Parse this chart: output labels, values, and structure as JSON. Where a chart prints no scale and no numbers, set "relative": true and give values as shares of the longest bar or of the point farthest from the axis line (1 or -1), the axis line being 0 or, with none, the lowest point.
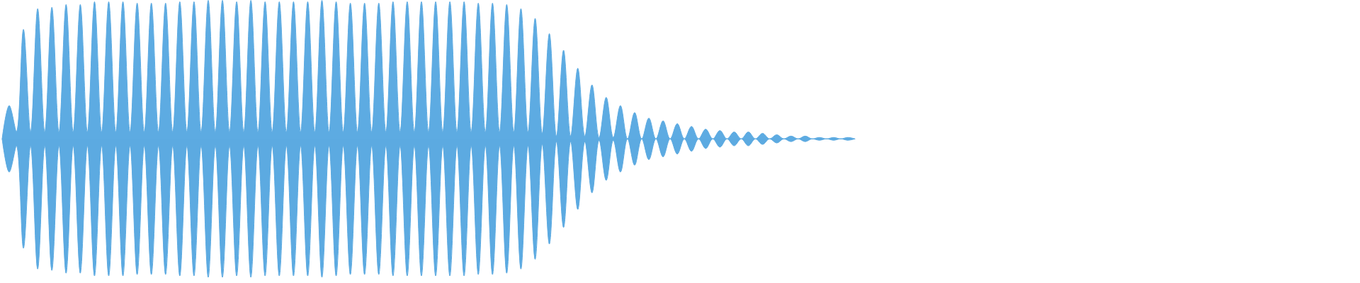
{
  "chart_data": {
    "type": "area",
    "relative": true,
    "categories": [
      null,
      null,
      null,
      null,
      null,
      null,
      null,
      null,
      null,
      null,
      null,
      null,
      null,
      null,
      null,
      null,
      null,
      null,
      null,
      null,
      null,
      null,
      null,
      null,
      null,
      null,
      null,
      null,
      null,
      null,
      null,
      null,
      null,
      null,
      null,
      null,
      null,
      null,
      null,
      null,
      null,
      null,
      null,
      null,
      null,
      null,
      null,
      null,
      null,
      null,
      null,
      null,
      null,
      null,
      null,
      null,
      null,
      null,
      null,
      null,
      null,
      null,
      null,
      null,
      null,
      null,
      null,
      null,
      null,
      null,
      null,
      null,
      null,
      null,
      null,
      null,
      null,
      null,
      null,
      null,
      null,
      null,
      null,
      null,
      null,
      null,
      null,
      null,
      null,
      null,
      null,
      null,
      null,
      null,
      null,
      null,
      null,
      null,
      null,
      null,
      null,
      null,
      null,
      null,
      null,
      null,
      null,
      null,
      null,
      null,
      null,
      null,
      null,
      null,
      null,
      null,
      null,
      null,
      null,
      null,
      null
    ],
    "series": [
      {
        "color": "#5dabe2",
        "values": [
          0,
          0.24,
          0.05,
          0.79,
          0.05,
          0.94,
          0.05,
          0.95,
          0.05,
          0.97,
          0.05,
          0.97,
          0.05,
          0.99,
          0.05,
          0.99,
          0.05,
          0.99,
          0.05,
          0.98,
          0.05,
          0.98,
          0.05,
          0.98,
          0.05,
          0.99,
          0.05,
          0.99,
          0.05,
          1,
          0.05,
          1,
          0.05,
          0.99,
          0.05,
          1,
          0.05,
          0.99,
          0.05,
          0.99,
          0.05,
          0.99,
          0.05,
          0.99,
          0.05,
          1,
          0.05,
          0.99,
          0.05,
          0.98,
          0.05,
          0.98,
          0.05,
          0.98,
          0.05,
          0.99,
          0.05,
          0.99,
          0.05,
          0.99,
          0.05,
          0.99,
          0.05,
          0.99,
          0.05,
          0.99,
          0.05,
          0.98,
          0.05,
          0.98,
          0.05,
          0.97,
          0.05,
          0.94,
          0.05,
          0.87,
          0.04,
          0.76,
          0.02,
          0.64,
          0.02,
          0.51,
          0.02,
          0.39,
          0.01,
          0.3,
          0.01,
          0.24,
          0,
          0.19,
          0,
          0.15,
          0,
          0.13,
          0,
          0.11,
          0,
          0.09,
          0,
          0.07,
          0,
          0.06,
          0,
          0.05,
          0,
          0.05,
          0,
          0.04,
          0,
          0.03,
          0,
          0.02,
          0,
          0.02,
          0,
          0.01,
          0,
          0.01,
          0,
          0.01,
          0
        ]
      },
      {
        "color": "#5caae1",
        "values": [
          0,
          -0.24,
          -0.05,
          -0.79,
          -0.05,
          -0.94,
          -0.05,
          -0.95,
          -0.05,
          -0.97,
          -0.05,
          -0.97,
          -0.05,
          -0.99,
          -0.05,
          -0.99,
          -0.05,
          -0.99,
          -0.05,
          -0.98,
          -0.05,
          -0.98,
          -0.05,
          -0.98,
          -0.05,
          -0.99,
          -0.05,
          -0.99,
          -0.05,
          -1,
          -0.05,
          -1,
          -0.05,
          -0.99,
          -0.05,
          -1,
          -0.05,
          -0.99,
          -0.05,
          -0.99,
          -0.05,
          -0.99,
          -0.05,
          -0.99,
          -0.05,
          -1,
          -0.05,
          -0.99,
          -0.05,
          -0.98,
          -0.05,
          -0.98,
          -0.05,
          -0.98,
          -0.05,
          -0.99,
          -0.05,
          -0.99,
          -0.05,
          -0.99,
          -0.05,
          -0.99,
          -0.05,
          -0.99,
          -0.05,
          -0.99,
          -0.05,
          -0.98,
          -0.05,
          -0.98,
          -0.05,
          -0.97,
          -0.05,
          -0.94,
          -0.05,
          -0.87,
          -0.04,
          -0.76,
          -0.02,
          -0.64,
          -0.02,
          -0.51,
          -0.02,
          -0.39,
          -0.01,
          -0.3,
          -0.01,
          -0.24,
          0,
          -0.19,
          0,
          -0.15,
          0,
          -0.13,
          0,
          -0.11,
          0,
          -0.09,
          0,
          -0.07,
          0,
          -0.06,
          0,
          -0.05,
          0,
          -0.05,
          0,
          -0.04,
          0,
          -0.03,
          0,
          -0.02,
          0,
          -0.02,
          0,
          -0.01,
          0,
          -0.01,
          0,
          -0.01,
          0
        ]
      }
    ]
  }
}
